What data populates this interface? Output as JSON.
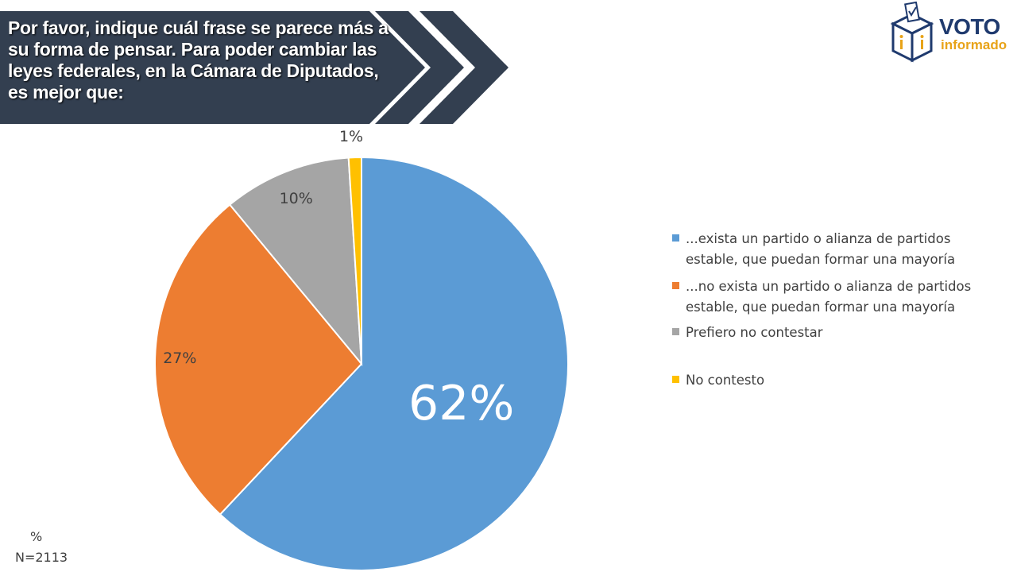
{
  "question": "Por favor, indique cuál frase se parece más a su forma de pensar. Para poder cambiar las leyes federales, en la Cámara de Diputados, es mejor que:",
  "logo": {
    "line1": "VOTO",
    "line2": "informado"
  },
  "footer": {
    "unit": "%",
    "sample": "N=2113"
  },
  "colors": {
    "banner": "#333f50",
    "logo_blue": "#1f3a6e",
    "logo_gold": "#e8a318"
  },
  "chart_data": {
    "type": "pie",
    "title": "",
    "start_angle": 0,
    "direction": "clockwise",
    "legend_position": "right",
    "slices": [
      {
        "label": "...exista un partido o alianza de partidos estable, que puedan formar una mayoría",
        "value": 62,
        "display": "62%",
        "color": "#5b9bd5"
      },
      {
        "label": "...no exista un partido o alianza de partidos estable, que puedan formar una mayoría",
        "value": 27,
        "display": "27%",
        "color": "#ed7d31"
      },
      {
        "label": "Prefiero no contestar",
        "value": 10,
        "display": "10%",
        "color": "#a5a5a5"
      },
      {
        "label": "No contesto",
        "value": 1,
        "display": "1%",
        "color": "#ffc000"
      }
    ]
  }
}
